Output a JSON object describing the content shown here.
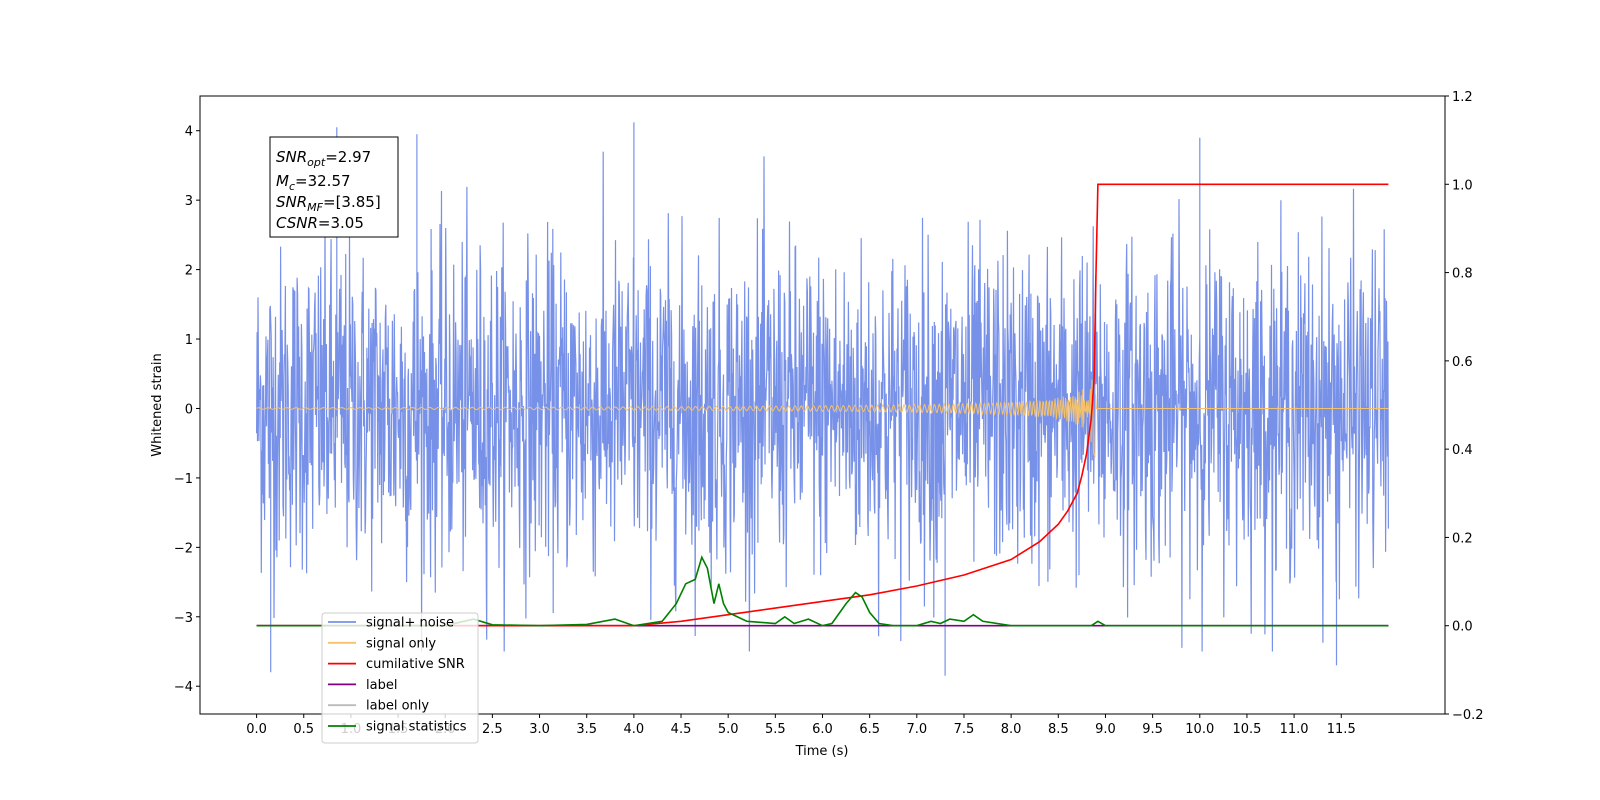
{
  "chart_data": {
    "type": "line",
    "xlabel": "Time (s)",
    "ylabel": "Whitened strain",
    "x_range": [
      -0.6,
      12.6
    ],
    "ylim_left": [
      -4.4,
      4.5
    ],
    "ylim_right": [
      -0.2,
      1.2
    ],
    "x_ticks": [
      "0.0",
      "0.5",
      "1.0",
      "1.5",
      "2.0",
      "2.5",
      "3.0",
      "3.5",
      "4.0",
      "4.5",
      "5.0",
      "5.5",
      "6.0",
      "6.5",
      "7.0",
      "7.5",
      "8.0",
      "8.5",
      "9.0",
      "9.5",
      "10.0",
      "10.5",
      "11.0",
      "11.5"
    ],
    "y_ticks_left": [
      "4",
      "3",
      "2",
      "1",
      "0",
      "−1",
      "−2",
      "−3",
      "−4"
    ],
    "y_ticks_right": [
      "1.2",
      "1.0",
      "0.8",
      "0.6",
      "0.4",
      "0.2",
      "0.0",
      "−0.2"
    ],
    "annotation": [
      {
        "base": "SNR",
        "sub": "opt",
        "value": "=2.97"
      },
      {
        "base": "M",
        "sub": "c",
        "value": "=32.57"
      },
      {
        "base": "SNR",
        "sub": "MF",
        "value": "=[3.85]"
      },
      {
        "base": "CSNR",
        "sub": "",
        "value": "=3.05"
      }
    ],
    "legend": {
      "location": "lower left",
      "entries": [
        {
          "label": "signal+ noise",
          "color": "#7891e8"
        },
        {
          "label": "signal only",
          "color": "#f5c26b"
        },
        {
          "label": "cumilative SNR",
          "color": "#ff0000"
        },
        {
          "label": "label",
          "color": "#800080"
        },
        {
          "label": "label only",
          "color": "#bbbbbb"
        },
        {
          "label": "signal statistics",
          "color": "#008000"
        }
      ]
    },
    "series": [
      {
        "name": "signal+ noise",
        "axis": "left",
        "color": "#7891e8",
        "kind": "noise",
        "x_start": 0.0,
        "x_end": 12.0,
        "envelope_typical": [
          -2.6,
          2.7
        ],
        "extremes": [
          -3.85,
          4.12
        ]
      },
      {
        "name": "signal only",
        "axis": "left",
        "color": "#f5c26b",
        "kind": "chirp",
        "x_start": 0.0,
        "x_end": 12.0,
        "merger_x": 8.9,
        "peak_amplitude": 0.75
      },
      {
        "name": "cumilative SNR",
        "axis": "right",
        "color": "#ff0000",
        "x": [
          0.0,
          4.0,
          4.5,
          5.0,
          5.5,
          6.0,
          6.5,
          7.0,
          7.5,
          8.0,
          8.3,
          8.5,
          8.6,
          8.7,
          8.75,
          8.8,
          8.85,
          8.88,
          8.9,
          8.92,
          12.0
        ],
        "y": [
          0.0,
          0.0,
          0.01,
          0.025,
          0.04,
          0.055,
          0.07,
          0.09,
          0.115,
          0.15,
          0.19,
          0.23,
          0.26,
          0.3,
          0.34,
          0.39,
          0.47,
          0.56,
          0.8,
          1.0,
          1.0
        ]
      },
      {
        "name": "label",
        "axis": "right",
        "color": "#800080",
        "x": [
          0.0,
          12.0
        ],
        "y": [
          0.0,
          0.0
        ]
      },
      {
        "name": "signal statistics",
        "axis": "right",
        "color": "#008000",
        "x": [
          0.0,
          1.0,
          2.0,
          2.3,
          2.5,
          3.0,
          3.5,
          3.8,
          4.0,
          4.3,
          4.45,
          4.55,
          4.65,
          4.72,
          4.78,
          4.85,
          4.9,
          4.95,
          5.0,
          5.2,
          5.5,
          5.6,
          5.7,
          5.85,
          6.0,
          6.1,
          6.25,
          6.35,
          6.42,
          6.5,
          6.6,
          6.75,
          7.0,
          7.15,
          7.25,
          7.35,
          7.5,
          7.6,
          7.7,
          8.0,
          8.85,
          8.92,
          9.0,
          12.0
        ],
        "y": [
          0.0,
          0.0,
          0.0,
          0.015,
          0.002,
          0.0,
          0.003,
          0.015,
          0.0,
          0.01,
          0.05,
          0.095,
          0.105,
          0.155,
          0.13,
          0.05,
          0.095,
          0.05,
          0.03,
          0.01,
          0.005,
          0.02,
          0.005,
          0.015,
          0.0,
          0.005,
          0.05,
          0.075,
          0.065,
          0.03,
          0.005,
          0.0,
          0.0,
          0.01,
          0.005,
          0.015,
          0.01,
          0.025,
          0.01,
          0.0,
          0.0,
          0.01,
          0.0,
          0.0
        ]
      }
    ]
  }
}
